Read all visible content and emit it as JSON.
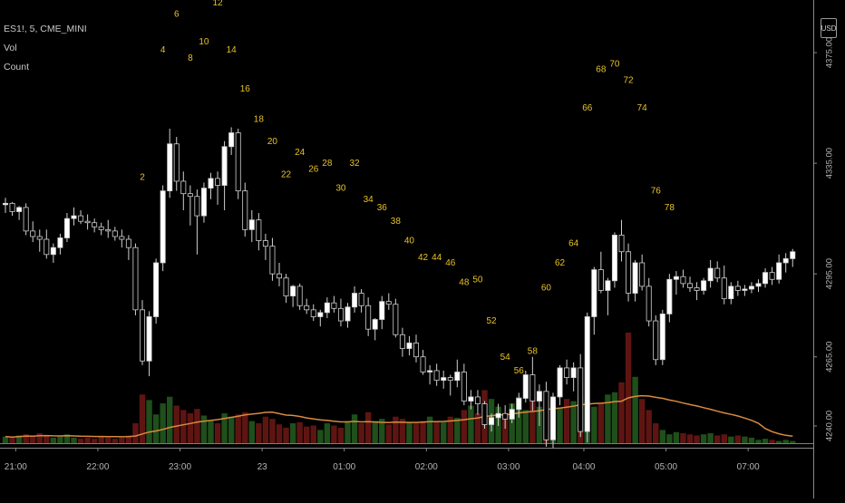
{
  "legend": {
    "symbol": "ES1!, 5, CME_MINI",
    "vol": "Vol",
    "count": "Count"
  },
  "currency": "USD",
  "colors": {
    "background": "#000000",
    "axis_line": "#8a8a8a",
    "axis_text": "#b4b4b4",
    "up_candle": "#ffffff",
    "down_candle": "#000000",
    "candle_outline": "#cfcfcf",
    "count_label": "#e8c227",
    "volume_up": "#1f4f1a",
    "volume_down": "#5e1512",
    "volume_ma": "#d98a3e"
  },
  "chart_data": {
    "type": "candlestick",
    "price_axis": {
      "ticks": [
        4375.0,
        4335.0,
        4295.0,
        4265.0,
        4240.0
      ],
      "labels": [
        "4375.00",
        "4335.00",
        "4295.00",
        "4265.00",
        "4240.00"
      ],
      "range": [
        4234,
        4398
      ]
    },
    "time_axis": {
      "labels": [
        "21:00",
        "22:00",
        "23:00",
        "23",
        "01:00",
        "02:00",
        "03:00",
        "04:00",
        "05:00",
        "07:00"
      ]
    },
    "candles": [
      [
        4320.0,
        4322.5,
        4317.0,
        4320.5
      ],
      [
        4320.5,
        4321.0,
        4316.0,
        4317.5
      ],
      [
        4317.5,
        4319.5,
        4314.5,
        4319.0
      ],
      [
        4319.0,
        4320.5,
        4309.0,
        4310.5
      ],
      [
        4310.5,
        4314.0,
        4306.5,
        4308.5
      ],
      [
        4308.5,
        4311.0,
        4303.0,
        4307.5
      ],
      [
        4307.5,
        4311.0,
        4300.5,
        4302.0
      ],
      [
        4302.0,
        4306.0,
        4299.0,
        4304.5
      ],
      [
        4304.5,
        4309.5,
        4302.0,
        4308.0
      ],
      [
        4308.0,
        4317.0,
        4306.5,
        4315.0
      ],
      [
        4315.0,
        4319.0,
        4312.5,
        4316.0
      ],
      [
        4316.0,
        4318.0,
        4313.0,
        4314.0
      ],
      [
        4314.0,
        4316.5,
        4311.0,
        4313.5
      ],
      [
        4313.5,
        4315.0,
        4310.0,
        4312.0
      ],
      [
        4312.0,
        4313.5,
        4309.0,
        4311.0
      ],
      [
        4311.0,
        4314.5,
        4308.0,
        4310.5
      ],
      [
        4310.5,
        4312.0,
        4307.0,
        4308.5
      ],
      [
        4308.5,
        4311.0,
        4304.5,
        4307.5
      ],
      [
        4307.5,
        4309.0,
        4300.0,
        4304.5
      ],
      [
        4304.5,
        4306.0,
        4280.0,
        4282.0
      ],
      [
        4282.0,
        4285.5,
        4262.0,
        4263.5
      ],
      [
        4263.5,
        4281.5,
        4258.0,
        4279.5
      ],
      [
        4279.5,
        4300.5,
        4277.0,
        4299.0
      ],
      [
        4299.0,
        4327.0,
        4296.0,
        4325.0
      ],
      [
        4325.0,
        4347.5,
        4322.5,
        4342.0
      ],
      [
        4342.0,
        4344.5,
        4325.0,
        4328.5
      ],
      [
        4328.5,
        4332.0,
        4318.0,
        4324.0
      ],
      [
        4324.0,
        4327.0,
        4312.5,
        4323.0
      ],
      [
        4323.0,
        4325.5,
        4302.0,
        4316.0
      ],
      [
        4316.0,
        4328.0,
        4313.5,
        4326.0
      ],
      [
        4326.0,
        4331.5,
        4322.0,
        4329.5
      ],
      [
        4329.5,
        4332.0,
        4320.0,
        4327.0
      ],
      [
        4327.0,
        4343.0,
        4318.0,
        4341.0
      ],
      [
        4341.0,
        4348.0,
        4338.0,
        4346.0
      ],
      [
        4346.0,
        4347.5,
        4322.0,
        4325.0
      ],
      [
        4325.0,
        4328.0,
        4308.5,
        4311.0
      ],
      [
        4311.0,
        4318.0,
        4306.5,
        4314.5
      ],
      [
        4314.5,
        4317.0,
        4303.5,
        4307.0
      ],
      [
        4307.0,
        4309.5,
        4300.0,
        4305.0
      ],
      [
        4305.0,
        4308.0,
        4292.5,
        4295.0
      ],
      [
        4295.0,
        4299.0,
        4290.5,
        4293.5
      ],
      [
        4293.5,
        4295.0,
        4284.5,
        4287.0
      ],
      [
        4287.0,
        4291.0,
        4283.0,
        4290.5
      ],
      [
        4290.5,
        4291.5,
        4282.0,
        4283.5
      ],
      [
        4283.5,
        4286.0,
        4280.5,
        4282.0
      ],
      [
        4282.0,
        4284.0,
        4278.0,
        4279.5
      ],
      [
        4279.5,
        4282.0,
        4276.0,
        4281.0
      ],
      [
        4281.0,
        4286.5,
        4279.0,
        4284.5
      ],
      [
        4284.5,
        4287.0,
        4281.0,
        4282.5
      ],
      [
        4282.5,
        4286.0,
        4276.0,
        4278.0
      ],
      [
        4278.0,
        4284.5,
        4275.5,
        4283.0
      ],
      [
        4283.0,
        4290.5,
        4281.0,
        4288.0
      ],
      [
        4288.0,
        4289.5,
        4281.0,
        4283.5
      ],
      [
        4283.5,
        4286.5,
        4272.5,
        4275.0
      ],
      [
        4275.0,
        4279.0,
        4271.0,
        4278.5
      ],
      [
        4278.5,
        4287.0,
        4275.0,
        4285.0
      ],
      [
        4285.0,
        4288.0,
        4282.0,
        4284.0
      ],
      [
        4284.0,
        4286.0,
        4272.0,
        4273.0
      ],
      [
        4273.0,
        4275.5,
        4265.0,
        4268.0
      ],
      [
        4268.0,
        4272.5,
        4265.5,
        4270.0
      ],
      [
        4270.0,
        4273.0,
        4263.0,
        4265.0
      ],
      [
        4265.0,
        4267.5,
        4258.5,
        4259.5
      ],
      [
        4259.5,
        4262.0,
        4255.0,
        4260.0
      ],
      [
        4260.0,
        4262.5,
        4254.5,
        4256.5
      ],
      [
        4256.5,
        4260.0,
        4253.5,
        4257.5
      ],
      [
        4257.5,
        4258.5,
        4251.0,
        4256.5
      ],
      [
        4256.5,
        4264.0,
        4254.0,
        4259.5
      ],
      [
        4259.5,
        4262.5,
        4247.5,
        4249.0
      ],
      [
        4249.0,
        4253.0,
        4246.0,
        4250.5
      ],
      [
        4250.5,
        4253.0,
        4244.0,
        4248.0
      ],
      [
        4248.0,
        4249.0,
        4239.0,
        4240.5
      ],
      [
        4240.5,
        4244.5,
        4238.0,
        4243.0
      ],
      [
        4243.0,
        4248.0,
        4240.0,
        4244.5
      ],
      [
        4244.5,
        4247.5,
        4239.0,
        4242.5
      ],
      [
        4242.5,
        4248.0,
        4241.0,
        4246.0
      ],
      [
        4246.0,
        4252.0,
        4243.0,
        4250.0
      ],
      [
        4250.0,
        4260.0,
        4248.5,
        4258.5
      ],
      [
        4258.5,
        4265.0,
        4245.5,
        4249.0
      ],
      [
        4249.0,
        4255.0,
        4240.0,
        4252.5
      ],
      [
        4252.5,
        4256.0,
        4232.5,
        4235.0
      ],
      [
        4235.0,
        4252.0,
        4232.0,
        4250.5
      ],
      [
        4250.5,
        4262.0,
        4247.5,
        4261.0
      ],
      [
        4261.0,
        4264.0,
        4255.0,
        4257.5
      ],
      [
        4257.5,
        4263.0,
        4252.5,
        4261.0
      ],
      [
        4261.0,
        4266.0,
        4236.0,
        4238.0
      ],
      [
        4238.0,
        4281.0,
        4234.0,
        4279.5
      ],
      [
        4279.5,
        4297.5,
        4273.0,
        4296.5
      ],
      [
        4296.5,
        4303.0,
        4288.0,
        4289.0
      ],
      [
        4289.0,
        4293.5,
        4280.0,
        4292.5
      ],
      [
        4292.5,
        4310.0,
        4290.0,
        4309.0
      ],
      [
        4309.0,
        4314.5,
        4299.5,
        4303.0
      ],
      [
        4303.0,
        4306.0,
        4285.0,
        4288.0
      ],
      [
        4288.0,
        4300.0,
        4285.0,
        4299.0
      ],
      [
        4299.0,
        4302.0,
        4289.0,
        4290.5
      ],
      [
        4290.5,
        4293.5,
        4276.0,
        4278.0
      ],
      [
        4278.0,
        4280.0,
        4262.0,
        4264.0
      ],
      [
        4264.0,
        4282.0,
        4262.0,
        4280.5
      ],
      [
        4280.5,
        4295.0,
        4277.5,
        4293.0
      ],
      [
        4293.0,
        4296.0,
        4287.5,
        4294.0
      ],
      [
        4294.0,
        4296.5,
        4290.0,
        4291.5
      ],
      [
        4291.5,
        4294.0,
        4288.5,
        4290.0
      ],
      [
        4290.0,
        4292.0,
        4285.5,
        4289.0
      ],
      [
        4289.0,
        4293.5,
        4287.5,
        4292.5
      ],
      [
        4292.5,
        4300.0,
        4290.0,
        4297.0
      ],
      [
        4297.0,
        4299.5,
        4292.0,
        4293.5
      ],
      [
        4293.5,
        4298.0,
        4284.0,
        4286.0
      ],
      [
        4286.0,
        4292.0,
        4284.0,
        4290.5
      ],
      [
        4290.5,
        4292.5,
        4287.0,
        4289.0
      ],
      [
        4289.0,
        4291.0,
        4287.0,
        4289.5
      ],
      [
        4289.5,
        4292.0,
        4288.0,
        4290.5
      ],
      [
        4290.5,
        4293.0,
        4288.5,
        4291.5
      ],
      [
        4291.5,
        4297.0,
        4290.0,
        4295.5
      ],
      [
        4295.5,
        4297.5,
        4291.0,
        4293.0
      ],
      [
        4293.0,
        4302.0,
        4291.5,
        4299.0
      ],
      [
        4299.0,
        4302.5,
        4295.5,
        4300.5
      ],
      [
        4300.5,
        4304.0,
        4297.5,
        4303.0
      ]
    ],
    "volume": [
      6,
      5,
      7,
      8,
      6,
      9,
      7,
      5,
      6,
      8,
      5,
      4,
      5,
      4,
      6,
      5,
      4,
      5,
      7,
      18,
      44,
      39,
      26,
      36,
      42,
      34,
      30,
      27,
      31,
      25,
      20,
      18,
      27,
      24,
      26,
      28,
      20,
      18,
      24,
      22,
      17,
      14,
      18,
      19,
      15,
      16,
      12,
      18,
      16,
      14,
      20,
      26,
      18,
      28,
      20,
      22,
      17,
      24,
      22,
      19,
      18,
      20,
      24,
      20,
      19,
      24,
      23,
      30,
      34,
      27,
      48,
      40,
      33,
      27,
      36,
      42,
      30,
      38,
      33,
      40,
      36,
      32,
      40,
      38,
      42,
      38,
      33,
      36,
      44,
      46,
      55,
      100,
      60,
      40,
      30,
      18,
      12,
      8,
      10,
      9,
      8,
      7,
      8,
      9,
      7,
      8,
      6,
      7,
      6,
      5,
      3,
      4,
      3,
      2,
      3,
      2
    ],
    "count_labels": [
      {
        "text": "2",
        "bar": 20,
        "price": 4329
      },
      {
        "text": "4",
        "bar": 23,
        "price": 4375
      },
      {
        "text": "6",
        "bar": 25,
        "price": 4388
      },
      {
        "text": "8",
        "bar": 27,
        "price": 4372
      },
      {
        "text": "10",
        "bar": 29,
        "price": 4378
      },
      {
        "text": "12",
        "bar": 31,
        "price": 4392
      },
      {
        "text": "14",
        "bar": 33,
        "price": 4375
      },
      {
        "text": "16",
        "bar": 35,
        "price": 4361
      },
      {
        "text": "18",
        "bar": 37,
        "price": 4350
      },
      {
        "text": "20",
        "bar": 39,
        "price": 4342
      },
      {
        "text": "22",
        "bar": 41,
        "price": 4330
      },
      {
        "text": "24",
        "bar": 43,
        "price": 4338
      },
      {
        "text": "26",
        "bar": 45,
        "price": 4332
      },
      {
        "text": "28",
        "bar": 47,
        "price": 4334
      },
      {
        "text": "30",
        "bar": 49,
        "price": 4325
      },
      {
        "text": "32",
        "bar": 51,
        "price": 4334
      },
      {
        "text": "34",
        "bar": 53,
        "price": 4321
      },
      {
        "text": "36",
        "bar": 55,
        "price": 4318
      },
      {
        "text": "38",
        "bar": 57,
        "price": 4313
      },
      {
        "text": "40",
        "bar": 59,
        "price": 4306
      },
      {
        "text": "42",
        "bar": 61,
        "price": 4300
      },
      {
        "text": "44",
        "bar": 63,
        "price": 4300
      },
      {
        "text": "46",
        "bar": 65,
        "price": 4298
      },
      {
        "text": "48",
        "bar": 67,
        "price": 4291
      },
      {
        "text": "50",
        "bar": 69,
        "price": 4292
      },
      {
        "text": "52",
        "bar": 71,
        "price": 4277
      },
      {
        "text": "54",
        "bar": 73,
        "price": 4264
      },
      {
        "text": "56",
        "bar": 75,
        "price": 4259
      },
      {
        "text": "58",
        "bar": 77,
        "price": 4266
      },
      {
        "text": "60",
        "bar": 79,
        "price": 4289
      },
      {
        "text": "62",
        "bar": 81,
        "price": 4298
      },
      {
        "text": "64",
        "bar": 83,
        "price": 4305
      },
      {
        "text": "66",
        "bar": 85,
        "price": 4354
      },
      {
        "text": "68",
        "bar": 87,
        "price": 4368
      },
      {
        "text": "70",
        "bar": 89,
        "price": 4370
      },
      {
        "text": "72",
        "bar": 91,
        "price": 4364
      },
      {
        "text": "74",
        "bar": 93,
        "price": 4354
      },
      {
        "text": "76",
        "bar": 95,
        "price": 4324
      },
      {
        "text": "78",
        "bar": 97,
        "price": 4318
      }
    ],
    "grid": false,
    "legend_position": "top-left"
  }
}
